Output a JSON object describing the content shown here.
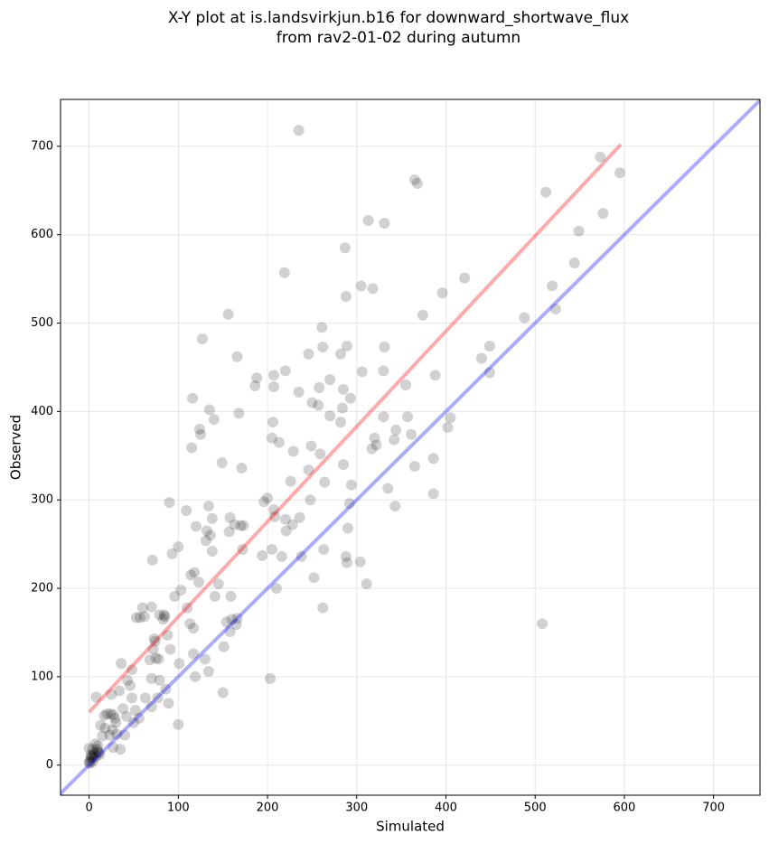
{
  "chart_data": {
    "type": "scatter",
    "title": [
      "X-Y plot at is.landsvirkjun.b16 for downward_shortwave_flux",
      "from rav2-01-02 during autumn"
    ],
    "xlabel": "Simulated",
    "ylabel": "Observed",
    "xlim": [
      -32,
      752
    ],
    "ylim": [
      -34,
      753
    ],
    "xticks": [
      0,
      100,
      200,
      300,
      400,
      500,
      600,
      700
    ],
    "yticks": [
      0,
      100,
      200,
      300,
      400,
      500,
      600,
      700
    ],
    "grid": true,
    "color": "#000000",
    "x": [
      235,
      365,
      368,
      573,
      595,
      576,
      512,
      549,
      544,
      519,
      523,
      488,
      449,
      449,
      440,
      421,
      396,
      374,
      388,
      386,
      386,
      402,
      405,
      365,
      357,
      355,
      361,
      343,
      342,
      344,
      331,
      330,
      330,
      331,
      313,
      318,
      305,
      306,
      322,
      320,
      317,
      335,
      311,
      304,
      289,
      288,
      290,
      292,
      294,
      293,
      289,
      288,
      287,
      285,
      282,
      284,
      282,
      285,
      270,
      270,
      264,
      263,
      262,
      261,
      262,
      259,
      258,
      257,
      252,
      248,
      249,
      246,
      246,
      250,
      238,
      236,
      235,
      229,
      228,
      226,
      220,
      219,
      221,
      220,
      216,
      213,
      207,
      207,
      206,
      205,
      208,
      207,
      205,
      210,
      203,
      200,
      196,
      194,
      188,
      186,
      173,
      172,
      171,
      170,
      168,
      166,
      166,
      165,
      163,
      160,
      159,
      158,
      158,
      157,
      156,
      154,
      151,
      150,
      149,
      145,
      141,
      140,
      138,
      138,
      136,
      135,
      134,
      132,
      131,
      130,
      134,
      127,
      125,
      124,
      123,
      120,
      118,
      116,
      115,
      114,
      117,
      113,
      117,
      119,
      109,
      110,
      103,
      101,
      100,
      100,
      96,
      93,
      90,
      91,
      89,
      88,
      86,
      85,
      84,
      83,
      79,
      79,
      78,
      77,
      75,
      74,
      73,
      72,
      71,
      70,
      70,
      70,
      68,
      63,
      62,
      60,
      57,
      53,
      56,
      52,
      50,
      48,
      48,
      46,
      43,
      42,
      40,
      38,
      36,
      35,
      34,
      31,
      30,
      29,
      27,
      27,
      26,
      25,
      24,
      23,
      20,
      18,
      17,
      15,
      13,
      11,
      10,
      9,
      8,
      7,
      6,
      5,
      4,
      3,
      2,
      1,
      0,
      0,
      2,
      5,
      10,
      12,
      8,
      4,
      1,
      508
    ],
    "values": [
      718,
      662,
      658,
      688,
      670,
      624,
      648,
      604,
      568,
      542,
      516,
      506,
      474,
      444,
      460,
      551,
      534,
      509,
      441,
      307,
      347,
      382,
      393,
      338,
      394,
      430,
      374,
      293,
      368,
      379,
      473,
      446,
      394,
      613,
      616,
      539,
      542,
      445,
      362,
      370,
      358,
      313,
      205,
      230,
      229,
      236,
      268,
      296,
      317,
      415,
      474,
      530,
      585,
      425,
      465,
      404,
      388,
      340,
      436,
      395,
      320,
      244,
      178,
      495,
      473,
      352,
      427,
      407,
      212,
      300,
      361,
      334,
      465,
      410,
      236,
      280,
      422,
      355,
      272,
      321,
      446,
      557,
      265,
      278,
      236,
      365,
      441,
      428,
      388,
      370,
      281,
      289,
      244,
      200,
      98,
      302,
      298,
      237,
      438,
      429,
      271,
      244,
      336,
      271,
      398,
      462,
      166,
      159,
      272,
      165,
      191,
      151,
      280,
      264,
      510,
      162,
      134,
      82,
      342,
      205,
      191,
      391,
      279,
      242,
      260,
      402,
      293,
      265,
      254,
      120,
      106,
      482,
      374,
      380,
      207,
      270,
      218,
      415,
      359,
      215,
      155,
      160,
      126,
      100,
      288,
      178,
      198,
      115,
      247,
      46,
      191,
      239,
      297,
      131,
      70,
      147,
      86,
      168,
      170,
      165,
      170,
      96,
      120,
      76,
      121,
      140,
      143,
      131,
      232,
      179,
      98,
      66,
      119,
      76,
      168,
      178,
      167,
      167,
      53,
      62,
      48,
      108,
      76,
      90,
      96,
      55,
      34,
      64,
      115,
      18,
      84,
      35,
      48,
      53,
      57,
      20,
      40,
      80,
      58,
      34,
      58,
      42,
      56,
      33,
      45,
      14,
      22,
      18,
      77,
      24,
      14,
      12,
      18,
      10,
      8,
      5,
      3,
      19,
      12,
      8,
      15,
      12,
      10,
      4,
      2,
      160
    ],
    "lines": [
      {
        "color": "#ff0000",
        "x": [
          0,
          596
        ],
        "values": [
          60,
          702
        ]
      },
      {
        "color": "#0000ff",
        "x": [
          -34,
          753
        ],
        "values": [
          -34,
          753
        ]
      }
    ]
  }
}
